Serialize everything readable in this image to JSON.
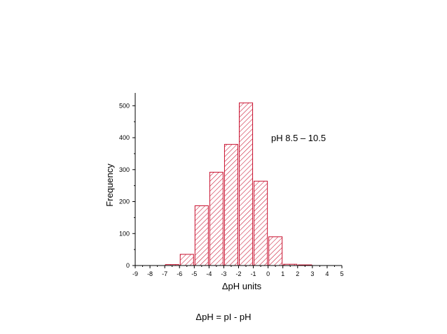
{
  "chart_data": {
    "type": "bar",
    "xlabel": "ΔpH units",
    "ylabel": "Frequency",
    "annotation": "pH 8.5 – 10.5",
    "xlim": [
      -9,
      5
    ],
    "ylim": [
      0,
      540
    ],
    "x_ticks": [
      "-9",
      "-8",
      "-7",
      "-6",
      "-5",
      "-4",
      "-3",
      "-2",
      "-1",
      "0",
      "1",
      "2",
      "3",
      "4",
      "5"
    ],
    "y_ticks": [
      "0",
      "100",
      "200",
      "300",
      "400",
      "500"
    ],
    "bar_color": "#c8102e",
    "hatch": "diagonal",
    "grid": false,
    "bars": [
      {
        "x": -6.5,
        "value": 3
      },
      {
        "x": -5.5,
        "value": 35
      },
      {
        "x": -4.5,
        "value": 187
      },
      {
        "x": -3.5,
        "value": 292
      },
      {
        "x": -2.5,
        "value": 379
      },
      {
        "x": -1.5,
        "value": 509
      },
      {
        "x": -0.5,
        "value": 264
      },
      {
        "x": 0.5,
        "value": 90
      },
      {
        "x": 1.5,
        "value": 4
      },
      {
        "x": 2.5,
        "value": 2
      }
    ]
  },
  "caption": "ΔpH = pI - pH"
}
